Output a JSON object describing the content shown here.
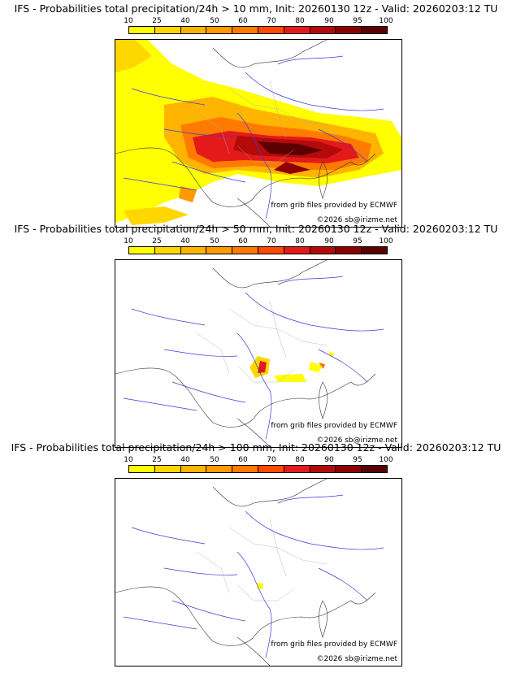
{
  "colorbar": {
    "ticks": [
      "10",
      "25",
      "40",
      "50",
      "60",
      "70",
      "80",
      "90",
      "95",
      "100"
    ],
    "colors": [
      "#ffff00",
      "#ffd700",
      "#ffb400",
      "#ff9a00",
      "#ff7a00",
      "#ff4a00",
      "#e41a1a",
      "#b40a0a",
      "#8c0000",
      "#5a0000"
    ]
  },
  "panels": [
    {
      "title": "IFS - Probabilities total precipitation/24h > 10 mm, Init: 20260130 12z - Valid: 20260203:12 TU",
      "credit_source": "from grib files provided by ECMWF",
      "credit_copyright": "©2026 sb@irizme.net"
    },
    {
      "title": "IFS - Probabilities total precipitation/24h > 50 mm, Init: 20260130 12z - Valid: 20260203:12 TU",
      "credit_source": "from grib files provided by ECMWF",
      "credit_copyright": "©2026 sb@irizme.net"
    },
    {
      "title": "IFS - Probabilities total precipitation/24h > 100 mm, Init: 20260130 12z - Valid: 20260203:12 TU",
      "credit_source": "from grib files provided by ECMWF",
      "credit_copyright": "©2026 sb@irizme.net"
    }
  ]
}
